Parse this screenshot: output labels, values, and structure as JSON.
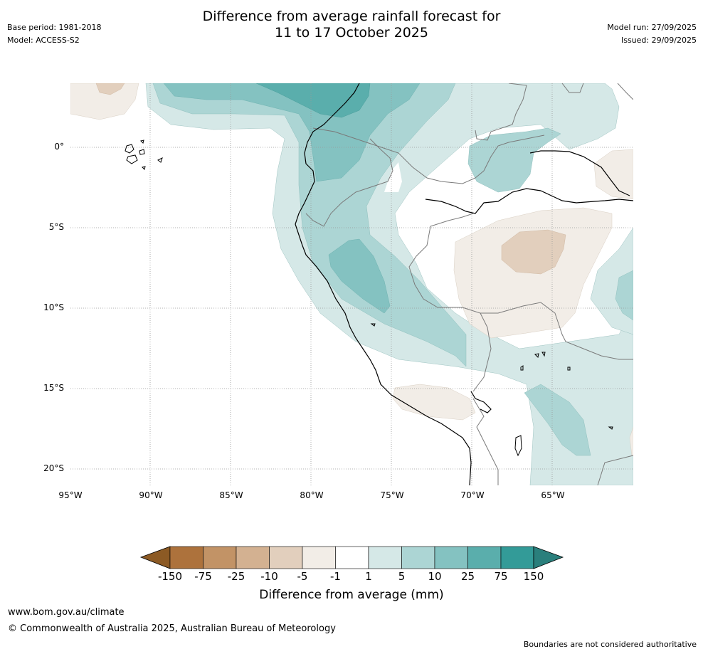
{
  "header": {
    "title_line1": "Difference from average rainfall forecast for",
    "title_line2": "11 to 17 October 2025",
    "base_period": "Base period: 1981-2018",
    "model": "Model: ACCESS-S2",
    "model_run": "Model run: 27/09/2025",
    "issued": "Issued: 29/09/2025"
  },
  "map": {
    "region": "Western South America (Peru, Ecuador, Colombia, Bolivia, Brazil)",
    "lat_labels": [
      "0°",
      "5°S",
      "10°S",
      "15°S",
      "20°S"
    ],
    "lon_labels": [
      "95°W",
      "90°W",
      "85°W",
      "80°W",
      "75°W",
      "70°W",
      "65°W"
    ]
  },
  "colorbar": {
    "ticks": [
      "-150",
      "-75",
      "-25",
      "-10",
      "-5",
      "-1",
      "1",
      "5",
      "10",
      "25",
      "75",
      "150"
    ],
    "colors": {
      "below_min": "#8c5a24",
      "c1": "#ad723c",
      "c2": "#c29366",
      "c3": "#d3b191",
      "c4": "#e2cfbd",
      "c5": "#f2ede7",
      "c6": "#ffffff",
      "c7": "#d5e8e7",
      "c8": "#acd5d4",
      "c9": "#84c2c1",
      "c10": "#5aaeac",
      "c11": "#339b98",
      "above_max": "#2a7f7c"
    },
    "label": "Difference from average (mm)"
  },
  "footer": {
    "url": "www.bom.gov.au/climate",
    "copyright": "© Commonwealth of Australia 2025, Australian Bureau of Meteorology",
    "disclaimer": "Boundaries are not considered authoritative"
  }
}
